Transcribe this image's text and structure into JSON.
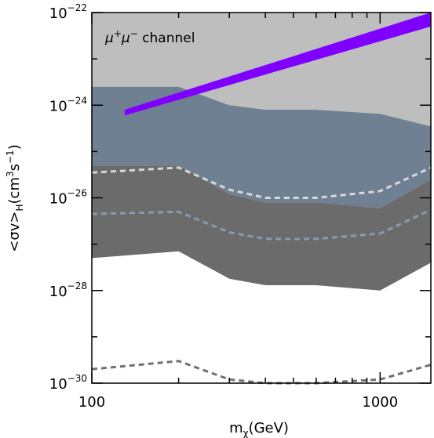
{
  "chart_data": {
    "type": "area",
    "xscale": "log",
    "yscale": "log",
    "xlim": [
      100,
      1500
    ],
    "ylim": [
      1e-30,
      1e-22
    ],
    "xticks": [
      {
        "value": 100,
        "label": "100"
      },
      {
        "value": 1000,
        "label": "1000"
      }
    ],
    "yticks": [
      {
        "value": 1e-30,
        "base": "10",
        "exp": "−30"
      },
      {
        "value": 1e-28,
        "base": "10",
        "exp": "−28"
      },
      {
        "value": 1e-26,
        "base": "10",
        "exp": "−26"
      },
      {
        "value": 1e-24,
        "base": "10",
        "exp": "−24"
      },
      {
        "value": 1e-22,
        "base": "10",
        "exp": "−22"
      }
    ],
    "xlabel": {
      "main": "m",
      "sub": "χ",
      "rest": "(GeV)"
    },
    "ylabel": {
      "pre": "<σv>",
      "sub": "H",
      "mid": "(cm",
      "sup1": "3",
      "mid2": "s",
      "sup2": "−1",
      "post": ")"
    },
    "annotation": {
      "text1": "μ",
      "sup1": "+",
      "text2": "μ",
      "sup2": "−",
      "text3": " channel"
    },
    "bands": [
      {
        "fill": "#bebebe",
        "x": [
          100,
          200,
          300,
          400,
          600,
          1000,
          1500
        ],
        "upper": [
          1e-22,
          1e-22,
          1e-22,
          1e-22,
          1e-22,
          1e-22,
          1e-22
        ],
        "lower": [
          2.5e-24,
          2.5e-24,
          1e-24,
          8e-25,
          8e-25,
          6.5e-25,
          3.5e-25
        ]
      },
      {
        "fill": "#6e8092",
        "x": [
          100,
          200,
          300,
          400,
          600,
          1000,
          1500
        ],
        "upper": [
          2.5e-24,
          2.5e-24,
          1e-24,
          8e-25,
          8e-25,
          6.5e-25,
          3.5e-25
        ],
        "lower": [
          5e-26,
          5e-26,
          1.2e-26,
          8e-27,
          8e-27,
          6e-27,
          2.5e-26
        ]
      },
      {
        "fill": "#6b6b6b",
        "x": [
          100,
          200,
          300,
          400,
          600,
          1000,
          1500
        ],
        "upper": [
          5e-26,
          5e-26,
          1.2e-26,
          8e-27,
          8e-27,
          6e-27,
          2.5e-26
        ],
        "lower": [
          5e-28,
          7e-28,
          1.8e-28,
          1.3e-28,
          1.3e-28,
          1e-28,
          4e-28
        ]
      }
    ],
    "lines": [
      {
        "color": "#d8d8d8",
        "dash": "dashed",
        "x": [
          100,
          200,
          300,
          400,
          600,
          1000,
          1500
        ],
        "y": [
          3.5e-26,
          4.5e-26,
          1.5e-26,
          1e-26,
          1e-26,
          1.4e-26,
          4.5e-26
        ]
      },
      {
        "color": "#8a9aae",
        "dash": "dashed",
        "x": [
          100,
          200,
          300,
          400,
          600,
          1000,
          1500
        ],
        "y": [
          4.5e-27,
          5e-27,
          1.8e-27,
          1.3e-27,
          1.3e-27,
          1.7e-27,
          5.5e-27
        ]
      },
      {
        "color": "#707070",
        "dash": "dashed",
        "x": [
          100,
          200,
          300,
          400,
          600,
          1000,
          1500
        ],
        "y": [
          2e-30,
          3e-30,
          1.2e-30,
          1e-30,
          1e-30,
          1.2e-30,
          2.5e-30
        ]
      }
    ],
    "signal_band": {
      "fill": "#8000ff",
      "x": [
        130,
        1500
      ],
      "lower": [
        6e-25,
        5e-23
      ],
      "upper": [
        8e-25,
        1e-22
      ]
    }
  }
}
